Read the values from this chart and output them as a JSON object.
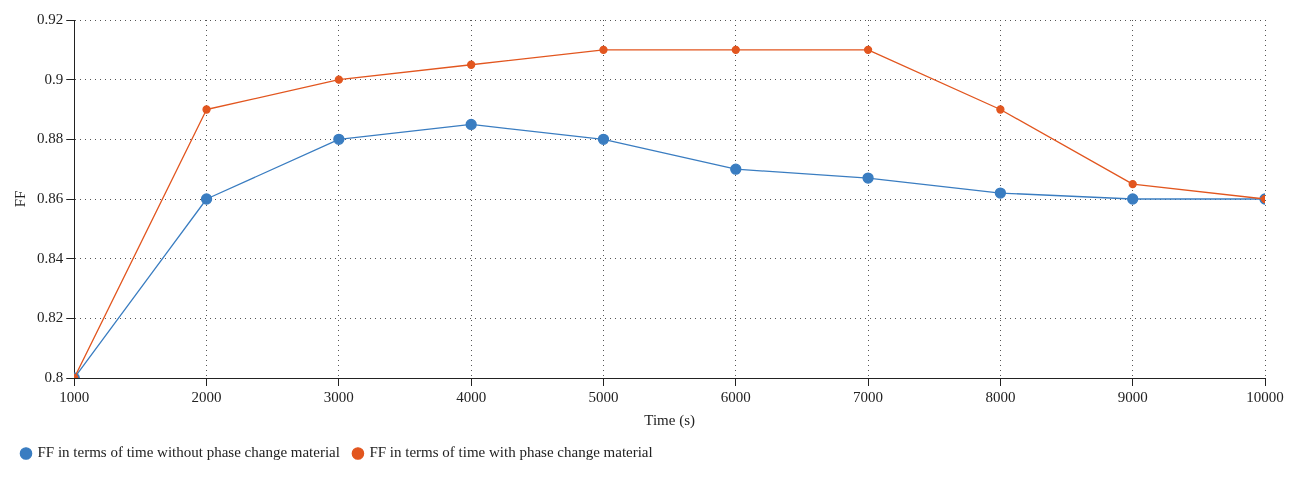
{
  "chart_data": {
    "type": "line",
    "xlabel": "Time (s)",
    "ylabel": "FF",
    "x": [
      1000,
      2000,
      3000,
      4000,
      5000,
      6000,
      7000,
      8000,
      9000,
      10000
    ],
    "series": [
      {
        "name": "FF in terms of time without phase change material",
        "color": "#3a7dc1",
        "values": [
          0.8,
          0.86,
          0.88,
          0.885,
          0.88,
          0.87,
          0.867,
          0.862,
          0.86,
          0.86
        ]
      },
      {
        "name": "FF in terms of time with phase change material",
        "color": "#e2561f",
        "values": [
          0.8,
          0.89,
          0.9,
          0.905,
          0.91,
          0.91,
          0.91,
          0.89,
          0.865,
          0.86
        ]
      }
    ],
    "xlim": [
      1000,
      10000
    ],
    "xticks": [
      1000,
      2000,
      3000,
      4000,
      5000,
      6000,
      7000,
      8000,
      9000,
      10000
    ],
    "ylim": [
      0.8,
      0.92
    ],
    "yticks": [
      0.8,
      0.82,
      0.84,
      0.86,
      0.88,
      0.9,
      0.92
    ],
    "grid": true,
    "legend": "bottom left",
    "marker": "circle",
    "line_style": "solid"
  }
}
